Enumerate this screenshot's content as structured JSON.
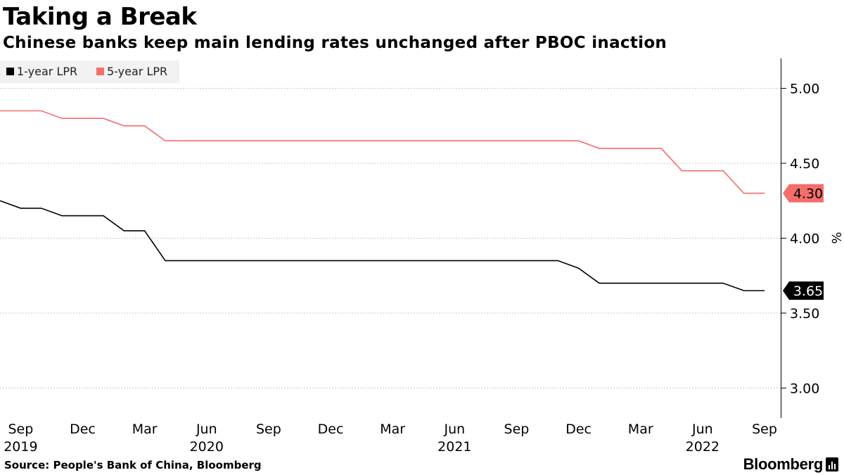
{
  "chart_data": {
    "type": "line",
    "title": "Taking a Break",
    "subtitle": "Chinese banks keep main lending rates unchanged after PBOC inaction",
    "xlabel": "",
    "ylabel": "%",
    "ylim": [
      2.8,
      5.2
    ],
    "yticks": [
      "5.00",
      "4.50",
      "4.00",
      "3.50",
      "3.00"
    ],
    "ytick_values": [
      5.0,
      4.5,
      4.0,
      3.5,
      3.0
    ],
    "grid": true,
    "legend_position": "top-left",
    "x": [
      "2019-08",
      "2019-09",
      "2019-10",
      "2019-11",
      "2019-12",
      "2020-01",
      "2020-02",
      "2020-03",
      "2020-04",
      "2020-05",
      "2020-06",
      "2020-07",
      "2020-08",
      "2020-09",
      "2020-10",
      "2020-11",
      "2020-12",
      "2021-01",
      "2021-02",
      "2021-03",
      "2021-04",
      "2021-05",
      "2021-06",
      "2021-07",
      "2021-08",
      "2021-09",
      "2021-10",
      "2021-11",
      "2021-12",
      "2022-01",
      "2022-02",
      "2022-03",
      "2022-04",
      "2022-05",
      "2022-06",
      "2022-07",
      "2022-08",
      "2022-09"
    ],
    "x_ticks": [
      {
        "month": "Sep",
        "year": "2019",
        "index": 1
      },
      {
        "month": "Dec",
        "year": "",
        "index": 4
      },
      {
        "month": "Mar",
        "year": "",
        "index": 7
      },
      {
        "month": "Jun",
        "year": "2020",
        "index": 10
      },
      {
        "month": "Sep",
        "year": "",
        "index": 13
      },
      {
        "month": "Dec",
        "year": "",
        "index": 16
      },
      {
        "month": "Mar",
        "year": "",
        "index": 19
      },
      {
        "month": "Jun",
        "year": "2021",
        "index": 22
      },
      {
        "month": "Sep",
        "year": "",
        "index": 25
      },
      {
        "month": "Dec",
        "year": "",
        "index": 28
      },
      {
        "month": "Mar",
        "year": "",
        "index": 31
      },
      {
        "month": "Jun",
        "year": "2022",
        "index": 34
      },
      {
        "month": "Sep",
        "year": "",
        "index": 37
      }
    ],
    "series": [
      {
        "name": "1-year LPR",
        "color": "#000000",
        "values": [
          4.25,
          4.2,
          4.2,
          4.15,
          4.15,
          4.15,
          4.05,
          4.05,
          3.85,
          3.85,
          3.85,
          3.85,
          3.85,
          3.85,
          3.85,
          3.85,
          3.85,
          3.85,
          3.85,
          3.85,
          3.85,
          3.85,
          3.85,
          3.85,
          3.85,
          3.85,
          3.85,
          3.85,
          3.8,
          3.7,
          3.7,
          3.7,
          3.7,
          3.7,
          3.7,
          3.7,
          3.65,
          3.65
        ],
        "end_label": "3.65"
      },
      {
        "name": "5-year LPR",
        "color": "#f46e6c",
        "values": [
          4.85,
          4.85,
          4.85,
          4.8,
          4.8,
          4.8,
          4.75,
          4.75,
          4.65,
          4.65,
          4.65,
          4.65,
          4.65,
          4.65,
          4.65,
          4.65,
          4.65,
          4.65,
          4.65,
          4.65,
          4.65,
          4.65,
          4.65,
          4.65,
          4.65,
          4.65,
          4.65,
          4.65,
          4.65,
          4.6,
          4.6,
          4.6,
          4.6,
          4.45,
          4.45,
          4.45,
          4.3,
          4.3
        ],
        "end_label": "4.30"
      }
    ]
  },
  "footer": {
    "source": "Source: People's Bank of China, Bloomberg",
    "brand": "Bloomberg"
  },
  "icons": {
    "brand_icon": "bloomberg-terminal-icon"
  }
}
